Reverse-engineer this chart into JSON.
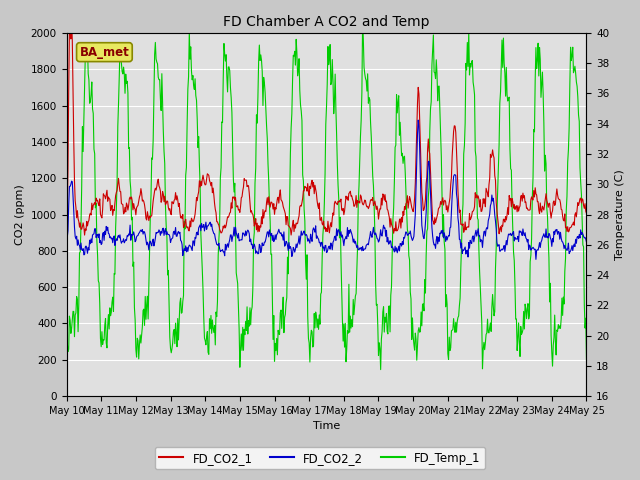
{
  "title": "FD Chamber A CO2 and Temp",
  "xlabel": "Time",
  "ylabel_left": "CO2 (ppm)",
  "ylabel_right": "Temperature (C)",
  "annotation": "BA_met",
  "ylim_left": [
    0,
    2000
  ],
  "ylim_right": [
    16,
    40
  ],
  "yticks_left": [
    0,
    200,
    400,
    600,
    800,
    1000,
    1200,
    1400,
    1600,
    1800,
    2000
  ],
  "yticks_right": [
    16,
    18,
    20,
    22,
    24,
    26,
    28,
    30,
    32,
    34,
    36,
    38,
    40
  ],
  "color_co2_1": "#cc0000",
  "color_co2_2": "#0000cc",
  "color_temp": "#00cc00",
  "line_width": 0.8,
  "legend_labels": [
    "FD_CO2_1",
    "FD_CO2_2",
    "FD_Temp_1"
  ],
  "fig_facecolor": "#c8c8c8",
  "axes_facecolor": "#e0e0e0",
  "grid_color": "#ffffff"
}
